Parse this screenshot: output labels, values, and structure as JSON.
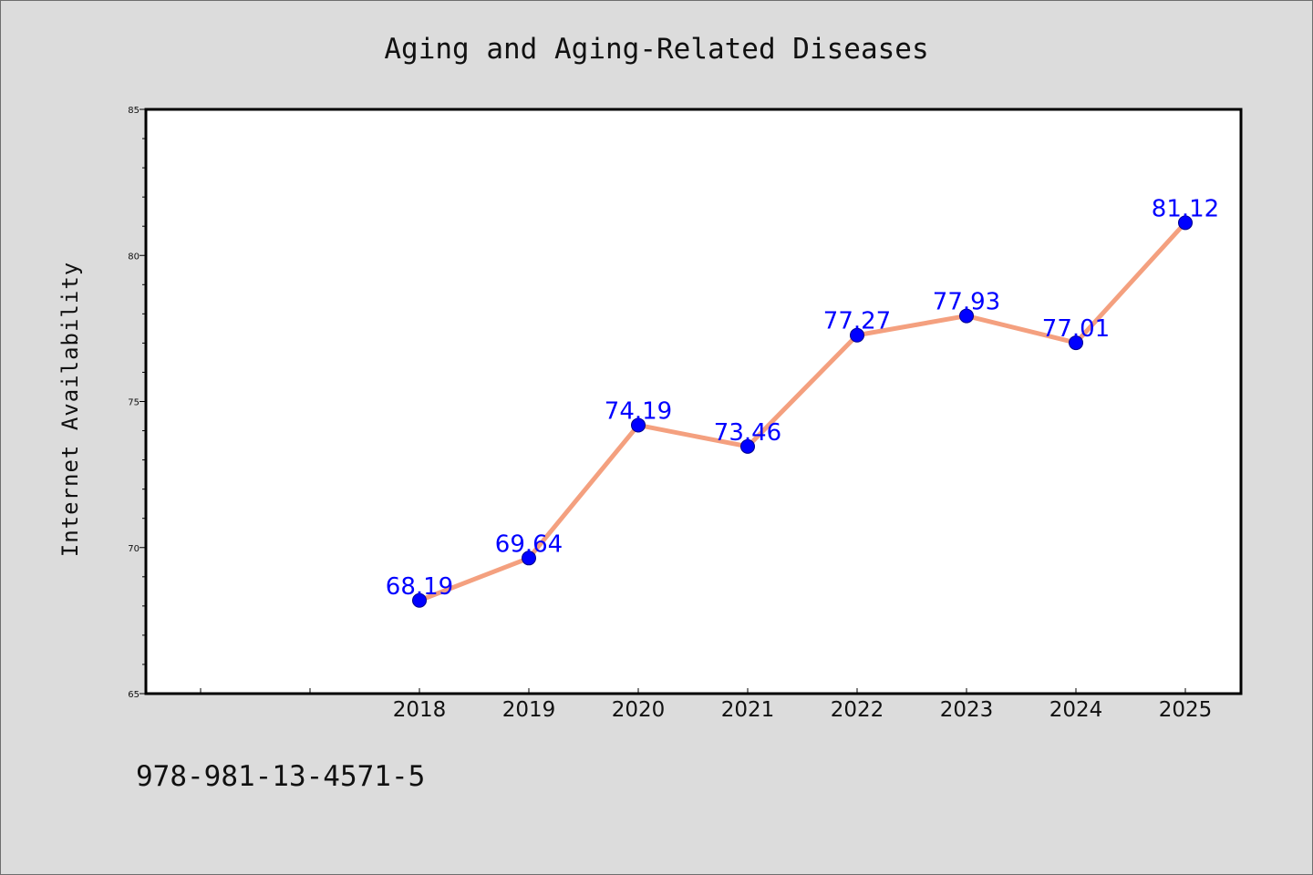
{
  "footer": {
    "code": "978-981-13-4571-5"
  },
  "colors": {
    "figure_background": "#dcdcdc",
    "plot_background": "#ffffff",
    "line": "#f4a07f",
    "marker": "#0000ff",
    "data_label": "#0000ff"
  },
  "chart_data": {
    "type": "line",
    "title": "Aging and Aging-Related Diseases",
    "xlabel": "",
    "ylabel": "Internet Availability",
    "x": [
      "2018",
      "2019",
      "2020",
      "2021",
      "2022",
      "2023",
      "2024",
      "2025"
    ],
    "series": [
      {
        "values": [
          68.19,
          69.64,
          74.19,
          73.46,
          77.27,
          77.93,
          77.01,
          81.12
        ]
      }
    ],
    "data_labels": [
      "68.19",
      "69.64",
      "74.19",
      "73.46",
      "77.27",
      "77.93",
      "77.01",
      "81.12"
    ],
    "ylim": [
      65,
      85
    ],
    "yticks": [
      "65",
      "70",
      "75",
      "80",
      "85"
    ],
    "grid": false,
    "legend": "none",
    "marker": "circle"
  }
}
